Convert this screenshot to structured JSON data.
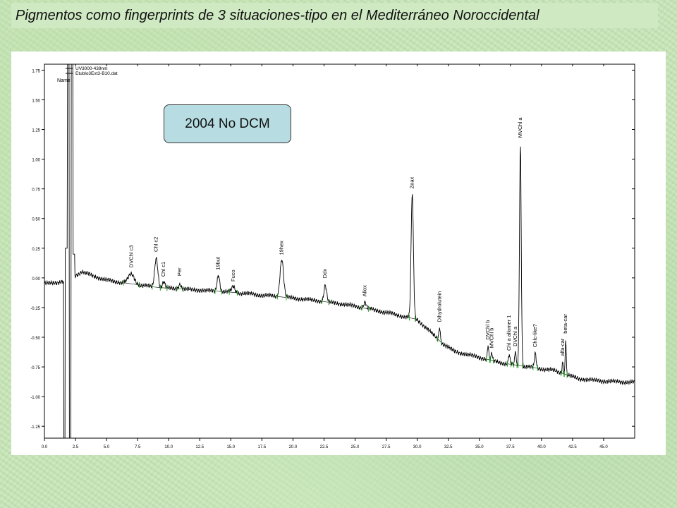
{
  "slide": {
    "title": "Pigmentos como fingerprints de 3 situaciones-tipo en el Mediterráneo Noroccidental"
  },
  "chart_data": {
    "type": "line",
    "series_label": "2004 No DCM",
    "legend": {
      "lines": [
        "UV3000-439nm",
        "Etublo3Ext3-B10.dat"
      ],
      "header": "Name"
    },
    "xlim": [
      0,
      47.5
    ],
    "ylim": [
      -1.35,
      1.8
    ],
    "x_ticks": [
      "0.0",
      "2.5",
      "5.0",
      "7.5",
      "10.0",
      "12.5",
      "15.0",
      "17.5",
      "20.0",
      "22.5",
      "25.0",
      "27.5",
      "30.0",
      "32.5",
      "35.0",
      "37.5",
      "40.0",
      "42.5",
      "45.0"
    ],
    "y_ticks": [
      "1.75",
      "1.50",
      "1.25",
      "1.00",
      "0.75",
      "0.50",
      "0.25",
      "0.00",
      "-0.25",
      "-0.50",
      "-0.75",
      "-1.00",
      "-1.25"
    ],
    "y_tick_values": [
      1.75,
      1.5,
      1.25,
      1.0,
      0.75,
      0.5,
      0.25,
      0.0,
      -0.25,
      -0.5,
      -0.75,
      -1.0,
      -1.25
    ],
    "x_tick_values": [
      0,
      2.5,
      5,
      7.5,
      10,
      12.5,
      15,
      17.5,
      20,
      22.5,
      25,
      27.5,
      30,
      32.5,
      35,
      37.5,
      40,
      42.5,
      45
    ],
    "baseline": [
      [
        0,
        -0.05
      ],
      [
        1.6,
        -0.03
      ],
      [
        3,
        0.05
      ],
      [
        5,
        -0.02
      ],
      [
        7,
        -0.05
      ],
      [
        9,
        -0.08
      ],
      [
        12,
        -0.1
      ],
      [
        15,
        -0.12
      ],
      [
        18,
        -0.15
      ],
      [
        21,
        -0.18
      ],
      [
        24,
        -0.22
      ],
      [
        27,
        -0.28
      ],
      [
        30,
        -0.35
      ],
      [
        31,
        -0.45
      ],
      [
        32,
        -0.55
      ],
      [
        33,
        -0.62
      ],
      [
        35,
        -0.67
      ],
      [
        37,
        -0.72
      ],
      [
        39,
        -0.75
      ],
      [
        41,
        -0.78
      ],
      [
        43,
        -0.85
      ],
      [
        45,
        -0.87
      ],
      [
        47.5,
        -0.88
      ]
    ],
    "peaks": [
      {
        "label": "DVChl c3",
        "x": 7.0,
        "height": 0.08,
        "width": 0.35
      },
      {
        "label": "Chl c2",
        "x": 9.0,
        "height": 0.25,
        "width": 0.18
      },
      {
        "label": "Chl c1",
        "x": 9.6,
        "height": 0.05,
        "width": 0.15
      },
      {
        "label": "Per",
        "x": 10.9,
        "height": 0.04,
        "width": 0.15
      },
      {
        "label": "19but",
        "x": 14.0,
        "height": 0.14,
        "width": 0.15
      },
      {
        "label": "Fuco",
        "x": 15.2,
        "height": 0.05,
        "width": 0.18
      },
      {
        "label": "19hex",
        "x": 19.1,
        "height": 0.32,
        "width": 0.2
      },
      {
        "label": "Ddx",
        "x": 22.6,
        "height": 0.14,
        "width": 0.15
      },
      {
        "label": "Allox",
        "x": 25.8,
        "height": 0.05,
        "width": 0.15
      },
      {
        "label": "Zeax",
        "x": 29.6,
        "height": 1.05,
        "width": 0.13
      },
      {
        "label": "Dihydrolutein",
        "x": 31.8,
        "height": 0.12,
        "width": 0.08
      },
      {
        "label": "DVChl b",
        "x": 35.7,
        "height": 0.12,
        "width": 0.07
      },
      {
        "label": "MVChl b",
        "x": 36.0,
        "height": 0.06,
        "width": 0.07
      },
      {
        "label": "Chl a allomer 1",
        "x": 37.4,
        "height": 0.08,
        "width": 0.08
      },
      {
        "label": "DVChl a",
        "x": 37.9,
        "height": 0.12,
        "width": 0.07
      },
      {
        "label": "MVChl a",
        "x": 38.3,
        "height": 1.85,
        "width": 0.1
      },
      {
        "label": "Chlc-like?",
        "x": 39.5,
        "height": 0.12,
        "width": 0.1
      },
      {
        "label": "alfa-car",
        "x": 41.7,
        "height": 0.1,
        "width": 0.06
      },
      {
        "label": "beta-car",
        "x": 41.95,
        "height": 0.3,
        "width": 0.06
      }
    ]
  }
}
